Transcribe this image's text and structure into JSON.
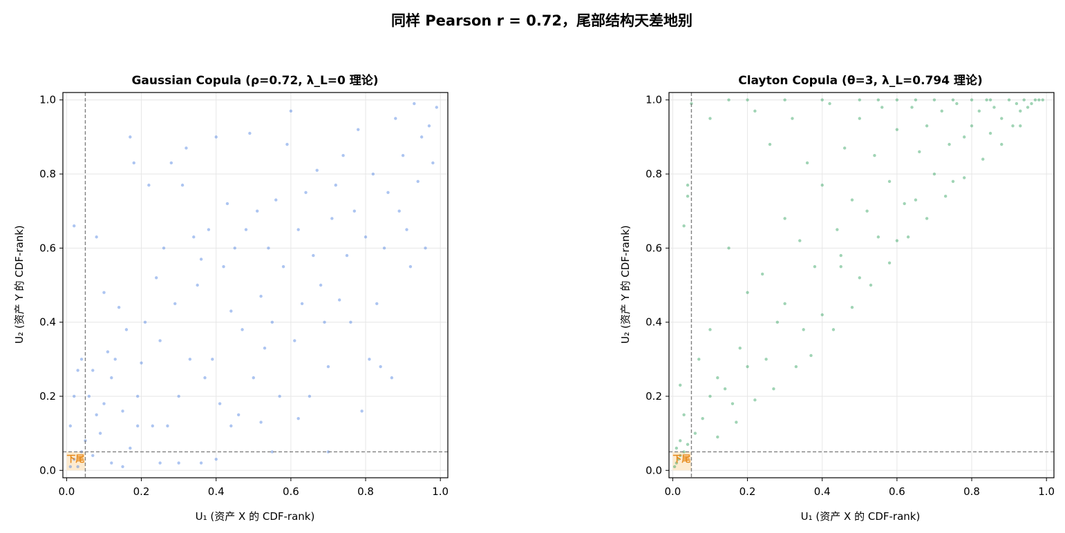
{
  "figure": {
    "suptitle": "同样 Pearson r = 0.72，尾部结构天差地别"
  },
  "chart_data": [
    {
      "type": "scatter",
      "title": "Gaussian Copula (ρ=0.72, λ_L=0 理论)",
      "xlabel": "U₁ (资产 X 的 CDF-rank)",
      "ylabel": "U₂ (资产 Y 的 CDF-rank)",
      "xlim": [
        -0.01,
        1.02
      ],
      "ylim": [
        -0.02,
        1.02
      ],
      "xticks": [
        0.0,
        0.2,
        0.4,
        0.6,
        0.8,
        1.0
      ],
      "yticks": [
        0.0,
        0.2,
        0.4,
        0.6,
        0.8,
        1.0
      ],
      "tick_labels": [
        "0.0",
        "0.2",
        "0.4",
        "0.6",
        "0.8",
        "1.0"
      ],
      "grid": true,
      "point_color": "#4a7fe0",
      "point_alpha": 0.45,
      "threshold_lines": {
        "x": 0.05,
        "y": 0.05,
        "color": "#808080",
        "style": "dashed"
      },
      "tail_region": {
        "x": [
          0,
          0.05
        ],
        "y": [
          0,
          0.05
        ],
        "color": "#fdebd0"
      },
      "annotation": {
        "text": "下尾",
        "x": 0.0,
        "y": 0.03,
        "color": "#e6891a"
      },
      "points": [
        [
          0.01,
          0.01
        ],
        [
          0.02,
          0.03
        ],
        [
          0.03,
          0.01
        ],
        [
          0.04,
          0.05
        ],
        [
          0.01,
          0.12
        ],
        [
          0.02,
          0.2
        ],
        [
          0.03,
          0.27
        ],
        [
          0.04,
          0.3
        ],
        [
          0.02,
          0.66
        ],
        [
          0.05,
          0.08
        ],
        [
          0.06,
          0.2
        ],
        [
          0.07,
          0.27
        ],
        [
          0.08,
          0.15
        ],
        [
          0.09,
          0.1
        ],
        [
          0.1,
          0.18
        ],
        [
          0.1,
          0.48
        ],
        [
          0.12,
          0.25
        ],
        [
          0.13,
          0.3
        ],
        [
          0.14,
          0.44
        ],
        [
          0.15,
          0.16
        ],
        [
          0.16,
          0.38
        ],
        [
          0.17,
          0.9
        ],
        [
          0.18,
          0.83
        ],
        [
          0.19,
          0.2
        ],
        [
          0.2,
          0.29
        ],
        [
          0.21,
          0.4
        ],
        [
          0.22,
          0.77
        ],
        [
          0.23,
          0.12
        ],
        [
          0.24,
          0.52
        ],
        [
          0.25,
          0.35
        ],
        [
          0.26,
          0.6
        ],
        [
          0.27,
          0.12
        ],
        [
          0.28,
          0.83
        ],
        [
          0.29,
          0.45
        ],
        [
          0.3,
          0.2
        ],
        [
          0.31,
          0.77
        ],
        [
          0.32,
          0.87
        ],
        [
          0.33,
          0.3
        ],
        [
          0.34,
          0.63
        ],
        [
          0.35,
          0.5
        ],
        [
          0.36,
          0.57
        ],
        [
          0.37,
          0.25
        ],
        [
          0.38,
          0.65
        ],
        [
          0.39,
          0.3
        ],
        [
          0.4,
          0.9
        ],
        [
          0.41,
          0.18
        ],
        [
          0.42,
          0.55
        ],
        [
          0.43,
          0.72
        ],
        [
          0.44,
          0.43
        ],
        [
          0.45,
          0.6
        ],
        [
          0.46,
          0.15
        ],
        [
          0.47,
          0.38
        ],
        [
          0.48,
          0.65
        ],
        [
          0.49,
          0.91
        ],
        [
          0.5,
          0.25
        ],
        [
          0.51,
          0.7
        ],
        [
          0.52,
          0.47
        ],
        [
          0.53,
          0.33
        ],
        [
          0.54,
          0.6
        ],
        [
          0.55,
          0.4
        ],
        [
          0.56,
          0.73
        ],
        [
          0.57,
          0.2
        ],
        [
          0.58,
          0.55
        ],
        [
          0.59,
          0.88
        ],
        [
          0.6,
          0.97
        ],
        [
          0.61,
          0.35
        ],
        [
          0.62,
          0.65
        ],
        [
          0.63,
          0.45
        ],
        [
          0.64,
          0.75
        ],
        [
          0.65,
          0.2
        ],
        [
          0.66,
          0.58
        ],
        [
          0.67,
          0.81
        ],
        [
          0.68,
          0.5
        ],
        [
          0.69,
          0.4
        ],
        [
          0.7,
          0.28
        ],
        [
          0.71,
          0.68
        ],
        [
          0.72,
          0.77
        ],
        [
          0.73,
          0.46
        ],
        [
          0.74,
          0.85
        ],
        [
          0.75,
          0.58
        ],
        [
          0.76,
          0.4
        ],
        [
          0.77,
          0.7
        ],
        [
          0.78,
          0.92
        ],
        [
          0.79,
          0.16
        ],
        [
          0.8,
          0.63
        ],
        [
          0.81,
          0.3
        ],
        [
          0.82,
          0.8
        ],
        [
          0.83,
          0.45
        ],
        [
          0.84,
          0.28
        ],
        [
          0.85,
          0.6
        ],
        [
          0.86,
          0.75
        ],
        [
          0.87,
          0.25
        ],
        [
          0.88,
          0.95
        ],
        [
          0.89,
          0.7
        ],
        [
          0.9,
          0.85
        ],
        [
          0.91,
          0.65
        ],
        [
          0.92,
          0.55
        ],
        [
          0.93,
          0.99
        ],
        [
          0.94,
          0.78
        ],
        [
          0.95,
          0.9
        ],
        [
          0.96,
          0.6
        ],
        [
          0.97,
          0.93
        ],
        [
          0.98,
          0.83
        ],
        [
          0.99,
          0.98
        ],
        [
          0.36,
          0.02
        ],
        [
          0.4,
          0.03
        ],
        [
          0.15,
          0.01
        ],
        [
          0.11,
          0.32
        ],
        [
          0.08,
          0.63
        ],
        [
          0.12,
          0.02
        ],
        [
          0.55,
          0.05
        ],
        [
          0.44,
          0.12
        ],
        [
          0.3,
          0.02
        ],
        [
          0.52,
          0.13
        ],
        [
          0.62,
          0.14
        ],
        [
          0.7,
          0.05
        ],
        [
          0.17,
          0.06
        ],
        [
          0.25,
          0.02
        ],
        [
          0.19,
          0.12
        ],
        [
          0.07,
          0.04
        ]
      ]
    },
    {
      "type": "scatter",
      "title": "Clayton Copula (θ=3, λ_L=0.794 理论)",
      "xlabel": "U₁ (资产 X 的 CDF-rank)",
      "ylabel": "U₂ (资产 Y 的 CDF-rank)",
      "xlim": [
        -0.01,
        1.02
      ],
      "ylim": [
        -0.02,
        1.02
      ],
      "xticks": [
        0.0,
        0.2,
        0.4,
        0.6,
        0.8,
        1.0
      ],
      "yticks": [
        0.0,
        0.2,
        0.4,
        0.6,
        0.8,
        1.0
      ],
      "tick_labels": [
        "0.0",
        "0.2",
        "0.4",
        "0.6",
        "0.8",
        "1.0"
      ],
      "grid": true,
      "point_color": "#2ca05a",
      "point_alpha": 0.45,
      "threshold_lines": {
        "x": 0.05,
        "y": 0.05,
        "color": "#808080",
        "style": "dashed"
      },
      "tail_region": {
        "x": [
          0,
          0.05
        ],
        "y": [
          0,
          0.05
        ],
        "color": "#fdebd0"
      },
      "annotation": {
        "text": "下尾",
        "x": 0.0,
        "y": 0.03,
        "color": "#e6891a"
      },
      "points": [
        [
          0.005,
          0.01
        ],
        [
          0.01,
          0.02
        ],
        [
          0.015,
          0.03
        ],
        [
          0.02,
          0.04
        ],
        [
          0.01,
          0.06
        ],
        [
          0.02,
          0.08
        ],
        [
          0.03,
          0.05
        ],
        [
          0.04,
          0.07
        ],
        [
          0.03,
          0.15
        ],
        [
          0.02,
          0.23
        ],
        [
          0.03,
          0.66
        ],
        [
          0.04,
          0.74
        ],
        [
          0.04,
          0.77
        ],
        [
          0.06,
          0.1
        ],
        [
          0.07,
          0.3
        ],
        [
          0.08,
          0.14
        ],
        [
          0.1,
          0.2
        ],
        [
          0.1,
          0.38
        ],
        [
          0.12,
          0.25
        ],
        [
          0.14,
          0.22
        ],
        [
          0.15,
          0.6
        ],
        [
          0.16,
          0.18
        ],
        [
          0.18,
          0.33
        ],
        [
          0.2,
          0.48
        ],
        [
          0.2,
          0.28
        ],
        [
          0.22,
          0.97
        ],
        [
          0.24,
          0.53
        ],
        [
          0.25,
          0.3
        ],
        [
          0.26,
          0.88
        ],
        [
          0.28,
          0.4
        ],
        [
          0.3,
          0.68
        ],
        [
          0.3,
          0.45
        ],
        [
          0.32,
          0.95
        ],
        [
          0.34,
          0.62
        ],
        [
          0.35,
          0.38
        ],
        [
          0.36,
          0.83
        ],
        [
          0.38,
          0.55
        ],
        [
          0.4,
          0.42
        ],
        [
          0.4,
          0.77
        ],
        [
          0.42,
          0.99
        ],
        [
          0.44,
          0.65
        ],
        [
          0.45,
          0.55
        ],
        [
          0.46,
          0.87
        ],
        [
          0.48,
          0.73
        ],
        [
          0.5,
          0.52
        ],
        [
          0.5,
          0.95
        ],
        [
          0.52,
          0.7
        ],
        [
          0.54,
          0.85
        ],
        [
          0.55,
          0.63
        ],
        [
          0.56,
          0.98
        ],
        [
          0.58,
          0.78
        ],
        [
          0.6,
          0.62
        ],
        [
          0.6,
          0.92
        ],
        [
          0.62,
          0.72
        ],
        [
          0.64,
          0.98
        ],
        [
          0.65,
          0.73
        ],
        [
          0.66,
          0.86
        ],
        [
          0.68,
          0.93
        ],
        [
          0.7,
          0.8
        ],
        [
          0.72,
          0.97
        ],
        [
          0.74,
          0.88
        ],
        [
          0.75,
          0.78
        ],
        [
          0.76,
          0.99
        ],
        [
          0.78,
          0.9
        ],
        [
          0.8,
          0.93
        ],
        [
          0.82,
          0.97
        ],
        [
          0.84,
          1.0
        ],
        [
          0.85,
          0.91
        ],
        [
          0.86,
          0.98
        ],
        [
          0.88,
          0.95
        ],
        [
          0.9,
          1.0
        ],
        [
          0.91,
          0.93
        ],
        [
          0.92,
          0.99
        ],
        [
          0.93,
          0.97
        ],
        [
          0.94,
          1.0
        ],
        [
          0.95,
          0.98
        ],
        [
          0.96,
          0.99
        ],
        [
          0.97,
          1.0
        ],
        [
          0.98,
          1.0
        ],
        [
          0.99,
          1.0
        ],
        [
          0.05,
          0.99
        ],
        [
          0.1,
          0.95
        ],
        [
          0.15,
          1.0
        ],
        [
          0.2,
          1.0
        ],
        [
          0.3,
          1.0
        ],
        [
          0.4,
          1.0
        ],
        [
          0.5,
          1.0
        ],
        [
          0.6,
          1.0
        ],
        [
          0.7,
          1.0
        ],
        [
          0.8,
          1.0
        ],
        [
          0.55,
          1.0
        ],
        [
          0.65,
          1.0
        ],
        [
          0.75,
          1.0
        ],
        [
          0.85,
          1.0
        ],
        [
          0.45,
          0.58
        ],
        [
          0.12,
          0.09
        ],
        [
          0.17,
          0.13
        ],
        [
          0.22,
          0.19
        ],
        [
          0.27,
          0.22
        ],
        [
          0.33,
          0.28
        ],
        [
          0.37,
          0.31
        ],
        [
          0.43,
          0.38
        ],
        [
          0.48,
          0.44
        ],
        [
          0.53,
          0.5
        ],
        [
          0.58,
          0.56
        ],
        [
          0.63,
          0.63
        ],
        [
          0.68,
          0.68
        ],
        [
          0.73,
          0.74
        ],
        [
          0.78,
          0.79
        ],
        [
          0.83,
          0.84
        ],
        [
          0.88,
          0.88
        ],
        [
          0.93,
          0.93
        ]
      ]
    }
  ]
}
